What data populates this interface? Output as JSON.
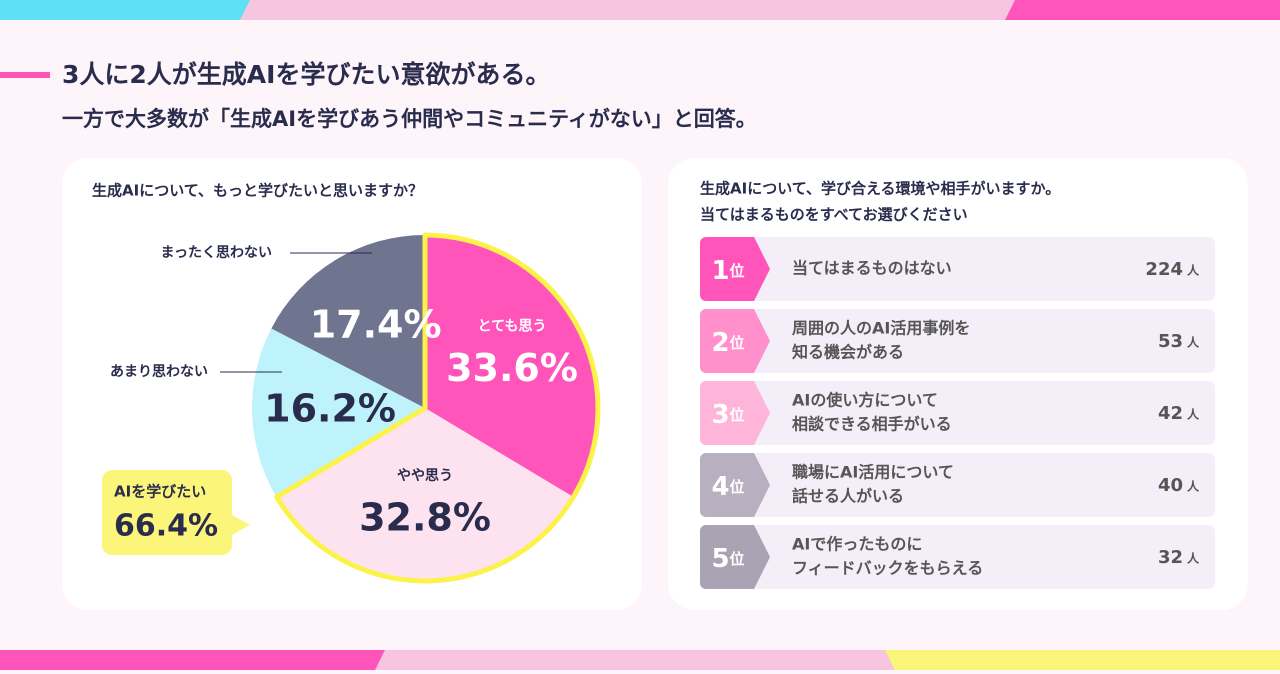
{
  "header": {
    "title": "3人に2人が生成AIを学びたい意欲がある。",
    "subtitle": "一方で大多数が「生成AIを学びあう仲間やコミュニティがない」と回答。"
  },
  "chart_data": [
    {
      "type": "pie",
      "title": "生成AIについて、もっと学びたいと思いますか？",
      "categories": [
        "とても思う",
        "やや思う",
        "あまり思わない",
        "まったく思わない"
      ],
      "values": [
        33.6,
        32.8,
        16.2,
        17.4
      ],
      "value_labels": [
        "33.6%",
        "32.8%",
        "16.2%",
        "17.4%"
      ],
      "colors": [
        "#ff55bb",
        "#fce3ef",
        "#bff3fb",
        "#6f748f"
      ],
      "annotation": {
        "label": "AIを学びたい",
        "value_label": "66.4%"
      }
    },
    {
      "type": "ranking",
      "title": [
        "生成AIについて、学び合える環境や相手がいますか。",
        "当てはまるものをすべてお選びください"
      ],
      "ranks": [
        "1",
        "2",
        "3",
        "4",
        "5"
      ],
      "rank_unit": "位",
      "categories": [
        [
          "当てはまるものはない"
        ],
        [
          "周囲の人のAI活用事例を",
          "知る機会がある"
        ],
        [
          "AIの使い方について",
          "相談できる相手がいる"
        ],
        [
          "職場にAI活用について",
          "話せる人がいる"
        ],
        [
          "AIで作ったものに",
          "フィードバックをもらえる"
        ]
      ],
      "values": [
        224,
        53,
        42,
        40,
        32
      ],
      "unit": "人",
      "colors": [
        "#ff55bb",
        "#ff90cc",
        "#ffb4da",
        "#b8afc1",
        "#a9a3b3"
      ]
    }
  ]
}
